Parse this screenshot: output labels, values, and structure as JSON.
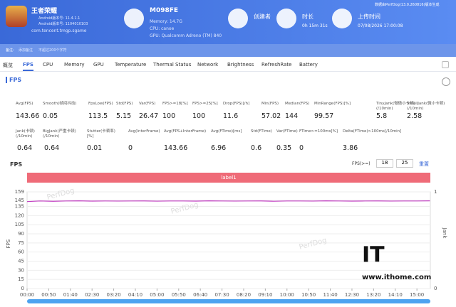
{
  "header": {
    "report_note": "数据由PerfDog(13.0.260816)版本生成",
    "app": {
      "name": "王者荣耀",
      "version": "Android版本号: 11.4.1.1",
      "version_code": "Android版本号: 1104010103",
      "package": "com.tencent.tmgp.sgame"
    },
    "device": {
      "name": "M098FE",
      "memory": "Memory: 14.7G",
      "cpu": "CPU: canoe",
      "gpu": "GPU: Qualcomm Adreno (TM) 840"
    },
    "creator": {
      "label": "创建者"
    },
    "duration": {
      "label": "时长",
      "value": "0h 15m 31s"
    },
    "upload": {
      "label": "上传时间",
      "value": "07/08/2026 17:00:08"
    }
  },
  "remark": {
    "label": "备注:",
    "placeholder": "添加备注",
    "hint": "不超过200个字符"
  },
  "tabs": [
    "概览",
    "FPS",
    "CPU",
    "Memory",
    "GPU",
    "Temperature",
    "Thermal Status",
    "Network",
    "Brightness",
    "RefreshRate",
    "Battery"
  ],
  "section_title": "FPS",
  "stats": [
    [
      {
        "label": "Avg(FPS)",
        "value": 143.66
      },
      {
        "label": "Smooth(帧间抖动)",
        "value": 0.05
      },
      {
        "label": "FpsLow(FPS)",
        "value": 113.5
      },
      {
        "label": "Std(FPS)",
        "value": 5.15
      },
      {
        "label": "Var(FPS)",
        "value": 26.47
      },
      {
        "label": "FPS>=18[%]",
        "value": 100
      },
      {
        "label": "FPS>=25[%]",
        "value": 100
      },
      {
        "label": "Drop(FPS)[/h]",
        "value": 11.6
      },
      {
        "label": "Min(FPS)",
        "value": 57.02
      },
      {
        "label": "Median(FPS)",
        "value": 144
      },
      {
        "label": "MinRange(FPS)[%]",
        "value": 99.57
      },
      {
        "label": "TinyJank(微微小卡顿)(/10min)",
        "value": 5.8
      },
      {
        "label": "SmallJank(微小卡顿)(/10min)",
        "value": 2.58
      }
    ],
    [
      {
        "label": "Jank(卡顿)(/10min)",
        "value": 0.64
      },
      {
        "label": "BigJank(严重卡顿)(/10min)",
        "value": 0.64
      },
      {
        "label": "Stutter(卡顿率)[%]",
        "value": 0.01
      },
      {
        "label": "Avg(InterFrame)",
        "value": 0
      },
      {
        "label": "Avg(FPS+InterFrame)",
        "value": 143.66
      },
      {
        "label": "Avg(FTime)[ms]",
        "value": 6.96
      },
      {
        "label": "Std(FTime)",
        "value": 0.6
      },
      {
        "label": "Var(FTime)",
        "value": 0.35
      },
      {
        "label": "FTime>=100ms[%]",
        "value": 0
      },
      {
        "label": "Delta(FTime)>100ms[/10min]",
        "value": 3.86
      }
    ]
  ],
  "chart_data": {
    "type": "line",
    "title": "FPS",
    "threshold_label": "FPS(>=)",
    "thresholds": [
      18,
      25
    ],
    "reset": "重置",
    "band_label": "label1",
    "ylabel": "FPS",
    "y2label": "Jank",
    "x": [
      0,
      30,
      60,
      90,
      120,
      150,
      180,
      210,
      240,
      270,
      300,
      330,
      360,
      390,
      420,
      450,
      480,
      510,
      540,
      570,
      600,
      630,
      660,
      690,
      720,
      750,
      780,
      810,
      840,
      870,
      900,
      930
    ],
    "series": [
      {
        "name": "FPS",
        "color": "#c23fc2",
        "values": [
          143,
          144,
          143.5,
          144,
          144.2,
          143.8,
          144,
          143.9,
          144,
          144.1,
          143.7,
          144,
          144,
          143.8,
          144.2,
          144,
          143.9,
          144,
          144.1,
          143.6,
          144,
          144,
          143.9,
          144.2,
          144,
          143.8,
          144,
          144.1,
          143.9,
          144,
          144,
          144.2
        ]
      }
    ],
    "xlim": [
      0,
      931
    ],
    "xticks": [
      {
        "value": 0,
        "label": "00:00"
      },
      {
        "value": 50,
        "label": "00:50"
      },
      {
        "value": 100,
        "label": "01:40"
      },
      {
        "value": 150,
        "label": "02:30"
      },
      {
        "value": 200,
        "label": "03:20"
      },
      {
        "value": 250,
        "label": "04:10"
      },
      {
        "value": 300,
        "label": "05:00"
      },
      {
        "value": 350,
        "label": "05:50"
      },
      {
        "value": 400,
        "label": "06:40"
      },
      {
        "value": 450,
        "label": "07:30"
      },
      {
        "value": 500,
        "label": "08:20"
      },
      {
        "value": 550,
        "label": "09:10"
      },
      {
        "value": 600,
        "label": "10:00"
      },
      {
        "value": 650,
        "label": "10:50"
      },
      {
        "value": 700,
        "label": "11:40"
      },
      {
        "value": 750,
        "label": "12:30"
      },
      {
        "value": 800,
        "label": "13:20"
      },
      {
        "value": 850,
        "label": "14:10"
      },
      {
        "value": 900,
        "label": "15:00"
      }
    ],
    "ylim": [
      0,
      159
    ],
    "yticks": [
      0,
      15,
      30,
      45,
      60,
      75,
      90,
      105,
      120,
      135,
      145,
      159
    ],
    "y2lim": [
      0,
      1
    ],
    "y2ticks": [
      0,
      1
    ],
    "grid": true
  },
  "watermark": "PerfDog",
  "site": "www.ithome.com",
  "logo": "IT"
}
